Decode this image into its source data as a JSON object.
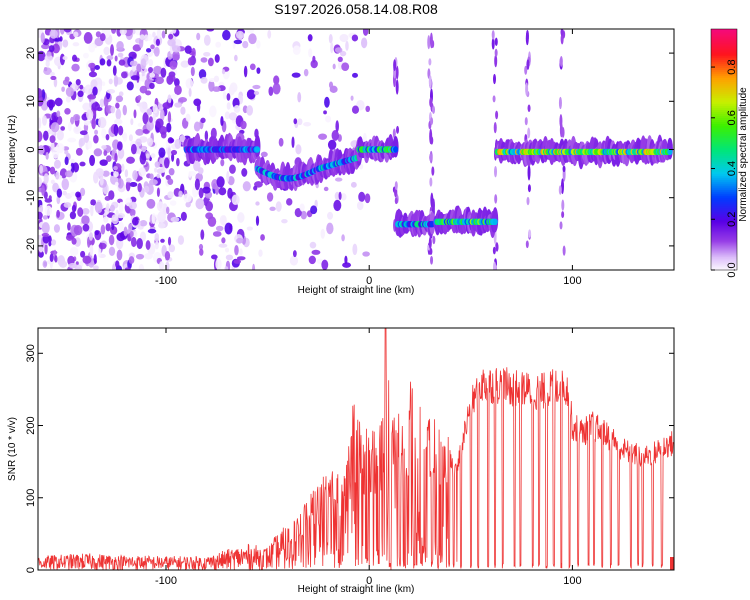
{
  "title": "S197.2026.058.14.08.R08",
  "chart_data": [
    {
      "type": "heatmap",
      "xlabel": "Height of straight line (km)",
      "ylabel": "Frequency (Hz)",
      "xlim": [
        -163,
        150
      ],
      "ylim": [
        -25,
        25
      ],
      "xticks": [
        -100,
        0,
        100
      ],
      "yticks": [
        -20,
        -10,
        0,
        10,
        20
      ],
      "colorbar": {
        "label": "Normalized spectral amplitude",
        "range": [
          0,
          0.95
        ],
        "ticks": [
          0.0,
          0.2,
          0.4,
          0.6,
          0.8
        ]
      },
      "noise_region_x": [
        -163,
        -25
      ],
      "bands": [
        {
          "x_start": -90,
          "x_end": -55,
          "freq": 0,
          "strength": 0.35
        },
        {
          "x_start": -55,
          "x_end": -25,
          "freq": -4,
          "strength": 0.4
        },
        {
          "x_start": -25,
          "x_end": -5,
          "freq": -2,
          "strength": 0.45
        },
        {
          "x_start": -5,
          "x_end": 13,
          "freq": 0,
          "strength": 0.55
        },
        {
          "x_start": 14,
          "x_end": 31,
          "freq": -15.5,
          "strength": 0.45
        },
        {
          "x_start": 33,
          "x_end": 62,
          "freq": -15,
          "strength": 0.6
        },
        {
          "x_start": 63,
          "x_end": 148,
          "freq": -0.5,
          "strength": 0.7
        }
      ],
      "vertical_streaks_x": [
        13,
        30,
        31,
        62,
        78,
        95
      ]
    },
    {
      "type": "line",
      "xlabel": "Height of straight line (km)",
      "ylabel": "SNR (10 * v/v)",
      "xlim": [
        -163,
        150
      ],
      "ylim": [
        0,
        335
      ],
      "xticks": [
        -100,
        0,
        100
      ],
      "yticks": [
        0,
        100,
        200,
        300
      ],
      "color": "#ee3333",
      "series": [
        {
          "name": "SNR",
          "x": [
            -163,
            -140,
            -120,
            -100,
            -80,
            -70,
            -60,
            -50,
            -45,
            -40,
            -35,
            -30,
            -25,
            -20,
            -15,
            -10,
            -8,
            -5,
            0,
            5,
            8,
            10,
            15,
            20,
            25,
            30,
            35,
            40,
            42,
            45,
            50,
            55,
            60,
            65,
            70,
            75,
            80,
            85,
            90,
            95,
            98,
            100,
            105,
            110,
            115,
            120,
            125,
            130,
            135,
            140,
            145,
            150
          ],
          "y": [
            15,
            18,
            16,
            15,
            15,
            22,
            28,
            25,
            40,
            50,
            70,
            90,
            110,
            120,
            120,
            150,
            220,
            180,
            170,
            200,
            170,
            250,
            230,
            230,
            210,
            200,
            180,
            160,
            140,
            175,
            240,
            270,
            270,
            270,
            265,
            265,
            260,
            260,
            265,
            270,
            260,
            210,
            200,
            210,
            200,
            190,
            175,
            170,
            165,
            170,
            180,
            185
          ]
        }
      ],
      "dropout_count": 34
    }
  ]
}
